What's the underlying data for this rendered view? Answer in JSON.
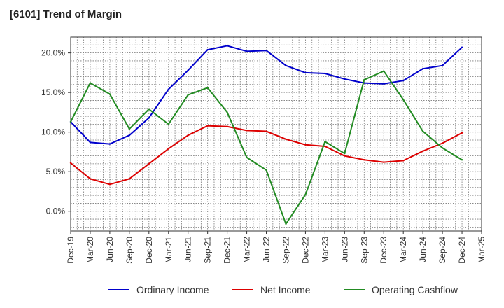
{
  "chart_data": {
    "type": "line",
    "title": "[6101]  Trend of Margin",
    "xlabel": "",
    "ylabel": "",
    "ylim": [
      -2.5,
      22.0
    ],
    "grid": true,
    "legend_position": "bottom",
    "y_ticks": [
      "20.0%",
      "15.0%",
      "10.0%",
      "5.0%",
      "0.0%"
    ],
    "y_tick_values": [
      20,
      15,
      10,
      5,
      0
    ],
    "categories": [
      "Dec-19",
      "Mar-20",
      "Jun-20",
      "Sep-20",
      "Dec-20",
      "Mar-21",
      "Jun-21",
      "Sep-21",
      "Dec-21",
      "Mar-22",
      "Jun-22",
      "Sep-22",
      "Dec-22",
      "Mar-23",
      "Jun-23",
      "Sep-23",
      "Dec-23",
      "Mar-24",
      "Jun-24",
      "Sep-24",
      "Dec-24",
      "Mar-25"
    ],
    "series": [
      {
        "name": "Ordinary Income",
        "color": "#0000cc",
        "values": [
          11.3,
          8.7,
          8.5,
          9.6,
          11.8,
          15.4,
          17.8,
          20.4,
          20.9,
          20.2,
          20.3,
          18.4,
          17.5,
          17.4,
          16.7,
          16.2,
          16.1,
          16.5,
          18.0,
          18.4,
          20.7,
          null
        ]
      },
      {
        "name": "Net Income",
        "color": "#dd0000",
        "values": [
          6.1,
          4.1,
          3.4,
          4.1,
          6.0,
          7.9,
          9.6,
          10.8,
          10.7,
          10.2,
          10.1,
          9.1,
          8.4,
          8.2,
          7.0,
          6.5,
          6.2,
          6.4,
          7.6,
          8.6,
          9.9,
          null
        ]
      },
      {
        "name": "Operating Cashflow",
        "color": "#228b22",
        "values": [
          11.3,
          16.2,
          14.8,
          10.4,
          12.9,
          11.0,
          14.7,
          15.6,
          12.5,
          6.8,
          5.2,
          -1.6,
          2.1,
          8.8,
          7.3,
          16.6,
          17.7,
          14.1,
          10.1,
          8.0,
          6.5,
          null
        ]
      }
    ]
  }
}
